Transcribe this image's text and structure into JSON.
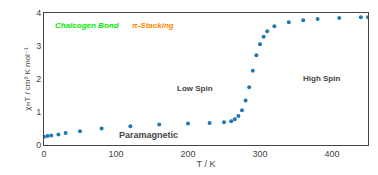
{
  "chart_data": {
    "type": "scatter",
    "xlabel": "T / K",
    "ylabel": "χₘT / cm³ K mol⁻¹",
    "x": [
      0,
      5,
      10,
      20,
      30,
      50,
      80,
      120,
      160,
      200,
      230,
      250,
      260,
      265,
      270,
      275,
      280,
      285,
      290,
      295,
      300,
      305,
      310,
      320,
      340,
      360,
      380,
      410,
      440,
      450
    ],
    "series": [
      {
        "values": [
          0.25,
          0.27,
          0.29,
          0.32,
          0.36,
          0.42,
          0.5,
          0.57,
          0.62,
          0.65,
          0.67,
          0.69,
          0.72,
          0.78,
          0.88,
          1.05,
          1.35,
          1.75,
          2.25,
          2.72,
          3.05,
          3.28,
          3.45,
          3.6,
          3.72,
          3.78,
          3.82,
          3.85,
          3.87,
          3.87
        ],
        "marker": "circle"
      }
    ],
    "xlim": [
      0,
      450
    ],
    "ylim": [
      0,
      4.0
    ],
    "xticks": [
      0,
      100,
      200,
      300,
      400
    ],
    "yticks": [
      0,
      1.0,
      2.0,
      3.0,
      4.0
    ],
    "grid": false,
    "annotations": [
      {
        "text": "Chalcogen Bond",
        "color": "#00ee00"
      },
      {
        "text": "π-Stacking",
        "color": "#ff8800"
      },
      {
        "text": "Low Spin"
      },
      {
        "text": "High Spin"
      },
      {
        "text": "Paramagnetic"
      }
    ]
  }
}
